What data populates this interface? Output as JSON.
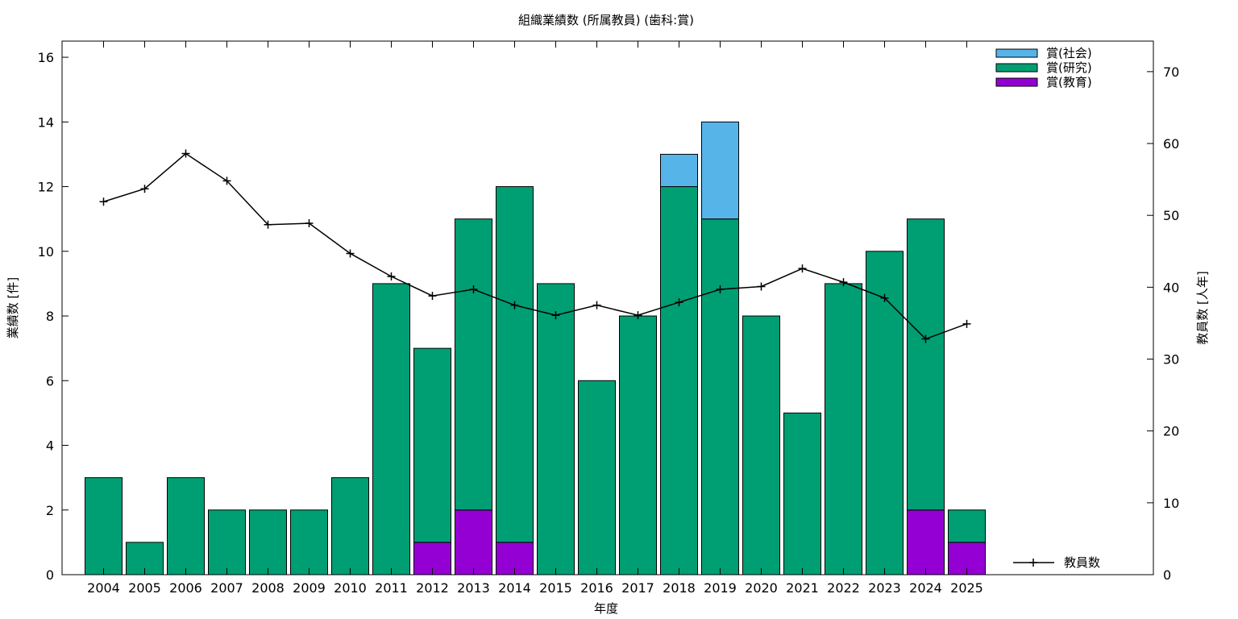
{
  "chart_data": {
    "type": "bar",
    "title": "組織業績数 (所属教員) (歯科:賞)",
    "xlabel": "年度",
    "ylabel": "業績数 [件]",
    "y2label": "教員数 [人年]",
    "stacked": true,
    "categories": [
      "2004",
      "2005",
      "2006",
      "2007",
      "2008",
      "2009",
      "2010",
      "2011",
      "2012",
      "2013",
      "2014",
      "2015",
      "2016",
      "2017",
      "2018",
      "2019",
      "2020",
      "2021",
      "2022",
      "2023",
      "2024",
      "2025"
    ],
    "ylim": [
      0,
      16.5
    ],
    "yticks": [
      0,
      2,
      4,
      6,
      8,
      10,
      12,
      14,
      16
    ],
    "y2lim": [
      0,
      74.25
    ],
    "y2ticks": [
      0,
      10,
      20,
      30,
      40,
      50,
      60,
      70
    ],
    "series": [
      {
        "name": "賞(教育)",
        "color": "#9400d3",
        "values": [
          0,
          0,
          0,
          0,
          0,
          0,
          0,
          0,
          1,
          2,
          1,
          0,
          0,
          0,
          0,
          0,
          0,
          0,
          0,
          0,
          2,
          1
        ]
      },
      {
        "name": "賞(研究)",
        "color": "#009e73",
        "values": [
          3,
          1,
          3,
          2,
          2,
          2,
          3,
          9,
          6,
          9,
          11,
          9,
          6,
          8,
          12,
          11,
          8,
          5,
          9,
          10,
          9,
          1
        ]
      },
      {
        "name": "賞(社会)",
        "color": "#56b4e9",
        "values": [
          0,
          0,
          0,
          0,
          0,
          0,
          0,
          0,
          0,
          0,
          0,
          0,
          0,
          0,
          1,
          3,
          0,
          0,
          0,
          0,
          0,
          0
        ]
      }
    ],
    "line_series": {
      "name": "教員数",
      "axis": "y2",
      "color": "#000000",
      "values": [
        51.9,
        53.7,
        58.6,
        54.8,
        48.7,
        48.9,
        44.7,
        41.5,
        38.8,
        39.7,
        37.5,
        36.1,
        37.5,
        36.1,
        37.9,
        39.7,
        40.1,
        42.6,
        40.7,
        38.5,
        32.8,
        34.9
      ]
    },
    "legend_position": "top-right",
    "line_legend_position": "bottom-right",
    "grid": false
  }
}
